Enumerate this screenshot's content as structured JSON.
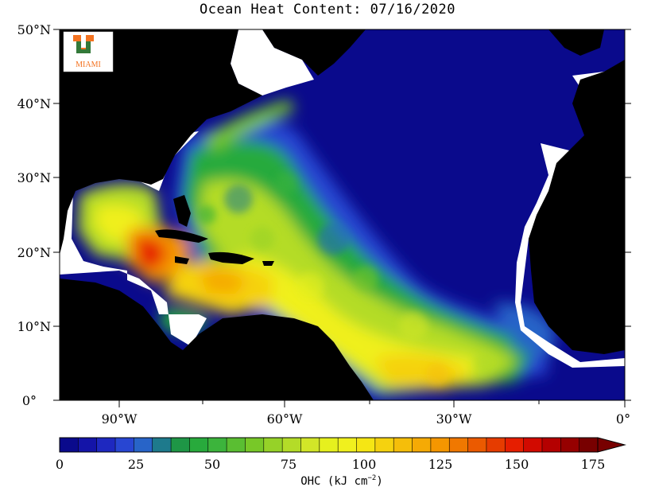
{
  "title": "Ocean Heat Content: 07/16/2020",
  "logo": {
    "text": "MIAMI",
    "letter": "U",
    "colors": {
      "green": "#1e7a3c",
      "orange": "#f47321"
    }
  },
  "lat_labels": [
    "50°N",
    "40°N",
    "30°N",
    "20°N",
    "10°N",
    "0°"
  ],
  "lon_labels": [
    "90°W",
    "60°W",
    "30°W",
    "0°"
  ],
  "colorbar": {
    "label": "OHC (kJ cm",
    "label_sup": "−2",
    "label_close": ")",
    "ticks": [
      "0",
      "25",
      "50",
      "75",
      "100",
      "125",
      "150",
      "175"
    ],
    "colors": [
      "#0a0a8c",
      "#1414a8",
      "#1e28c0",
      "#2846d2",
      "#2864c8",
      "#1e7a8c",
      "#1e9646",
      "#28aa3c",
      "#3cb43c",
      "#5abe32",
      "#78c828",
      "#96d228",
      "#b4dc28",
      "#d2e628",
      "#e6f01e",
      "#f0f01e",
      "#f5e614",
      "#f5d20f",
      "#f5be0a",
      "#f5aa05",
      "#f59600",
      "#f07800",
      "#eb5a00",
      "#e63c00",
      "#e61e00",
      "#d20a00",
      "#b40000",
      "#960000",
      "#780000"
    ]
  },
  "colors": {
    "land": "#000000",
    "no_data": "#ffffff",
    "ocean_deep": "#0a0a8c"
  }
}
